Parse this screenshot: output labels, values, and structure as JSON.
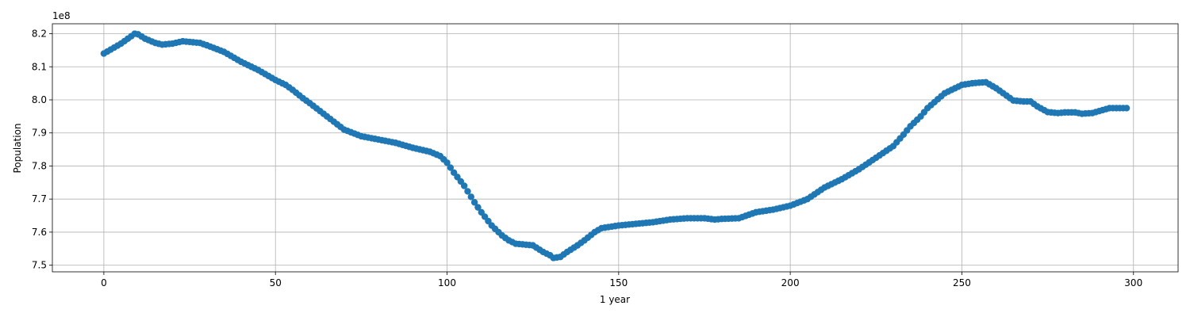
{
  "chart_data": {
    "type": "scatter",
    "title": "",
    "xlabel": "1 year",
    "ylabel": "Population",
    "y_offset_label": "1e8",
    "xlim": [
      -15,
      313
    ],
    "ylim": [
      7.48,
      8.23
    ],
    "x_ticks": [
      0,
      50,
      100,
      150,
      200,
      250,
      300
    ],
    "x_tick_labels": [
      "0",
      "50",
      "100",
      "150",
      "200",
      "250",
      "300"
    ],
    "y_ticks": [
      7.5,
      7.6,
      7.7,
      7.8,
      7.9,
      8.0,
      8.1,
      8.2
    ],
    "y_tick_labels": [
      "7.5",
      "7.6",
      "7.7",
      "7.8",
      "7.9",
      "8.0",
      "8.1",
      "8.2"
    ],
    "grid": true,
    "marker_color": "#1f77b4",
    "series": [
      {
        "x": [
          0,
          5,
          9,
          10,
          12,
          15,
          17,
          20,
          23,
          25,
          28,
          30,
          35,
          40,
          45,
          50,
          53,
          55,
          58,
          60,
          65,
          70,
          75,
          80,
          85,
          90,
          95,
          98,
          100,
          102,
          105,
          108,
          110,
          113,
          116,
          118,
          120,
          125,
          128,
          130,
          131,
          133,
          135,
          138,
          140,
          143,
          145,
          150,
          155,
          160,
          165,
          170,
          175,
          178,
          180,
          185,
          190,
          195,
          200,
          205,
          210,
          215,
          220,
          225,
          230,
          233,
          235,
          238,
          240,
          245,
          250,
          253,
          255,
          257,
          260,
          265,
          268,
          270,
          272,
          275,
          278,
          280,
          283,
          285,
          288,
          290,
          293,
          295,
          298
        ],
        "y": [
          8.14,
          8.17,
          8.2,
          8.198,
          8.185,
          8.172,
          8.167,
          8.17,
          8.177,
          8.175,
          8.172,
          8.165,
          8.145,
          8.115,
          8.09,
          8.06,
          8.045,
          8.03,
          8.005,
          7.99,
          7.95,
          7.91,
          7.89,
          7.88,
          7.87,
          7.855,
          7.843,
          7.83,
          7.81,
          7.78,
          7.74,
          7.69,
          7.66,
          7.62,
          7.59,
          7.575,
          7.565,
          7.56,
          7.54,
          7.53,
          7.522,
          7.525,
          7.54,
          7.56,
          7.575,
          7.6,
          7.612,
          7.62,
          7.625,
          7.63,
          7.638,
          7.642,
          7.642,
          7.638,
          7.64,
          7.642,
          7.66,
          7.668,
          7.68,
          7.7,
          7.735,
          7.76,
          7.79,
          7.825,
          7.86,
          7.895,
          7.92,
          7.95,
          7.975,
          8.02,
          8.045,
          8.05,
          8.052,
          8.053,
          8.035,
          7.998,
          7.995,
          7.995,
          7.98,
          7.963,
          7.96,
          7.962,
          7.962,
          7.958,
          7.96,
          7.966,
          7.975,
          7.975,
          7.975
        ]
      }
    ]
  }
}
